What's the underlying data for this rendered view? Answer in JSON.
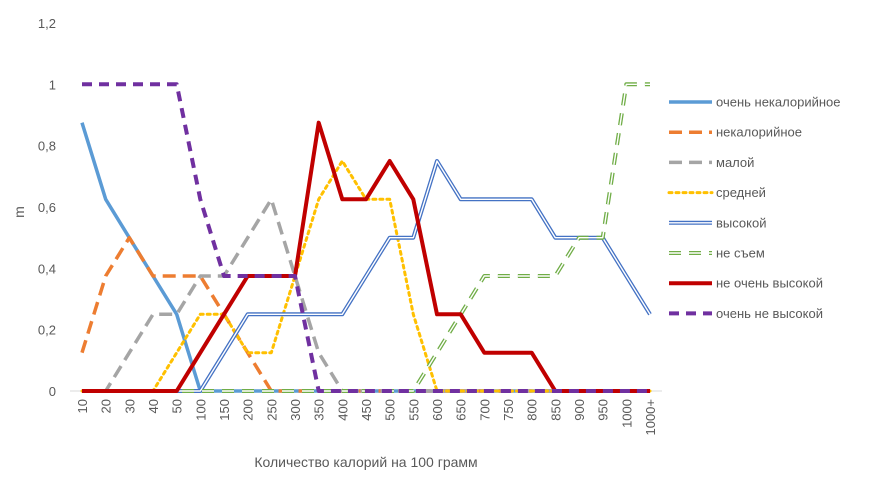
{
  "chart_data": {
    "type": "line",
    "xlabel": "Количество калорий на 100 грамм",
    "ylabel": "m",
    "ylim": [
      0,
      1.2
    ],
    "y_ticks": [
      "0",
      "0,2",
      "0,4",
      "0,6",
      "0,8",
      "1",
      "1,2"
    ],
    "grid": false,
    "legend_position": "right",
    "categories": [
      "10",
      "20",
      "30",
      "40",
      "50",
      "100",
      "150",
      "200",
      "250",
      "300",
      "350",
      "400",
      "450",
      "500",
      "550",
      "600",
      "650",
      "700",
      "750",
      "800",
      "850",
      "900",
      "950",
      "1000",
      "1000+"
    ],
    "series": [
      {
        "name": "очень некалорийное",
        "color": "#5b9bd5",
        "style": "solid",
        "values": [
          0.875,
          0.625,
          0.5,
          0.375,
          0.25,
          0,
          0,
          0,
          0,
          0,
          0,
          0,
          0,
          0,
          0,
          0,
          0,
          0,
          0,
          0,
          0,
          0,
          0,
          0,
          0
        ]
      },
      {
        "name": "некалорийное",
        "color": "#ed7d31",
        "style": "dashed",
        "values": [
          0.125,
          0.375,
          0.5,
          0.375,
          0.375,
          0.375,
          0.25,
          0.125,
          0,
          0,
          0,
          0,
          0,
          0,
          0,
          0,
          0,
          0,
          0,
          0,
          0,
          0,
          0,
          0,
          0
        ]
      },
      {
        "name": "малой",
        "color": "#a5a5a5",
        "style": "dashed",
        "values": [
          0,
          0,
          0.125,
          0.25,
          0.25,
          0.375,
          0.375,
          0.5,
          0.625,
          0.375,
          0.125,
          0,
          0,
          0,
          0,
          0,
          0,
          0,
          0,
          0,
          0,
          0,
          0,
          0,
          0
        ]
      },
      {
        "name": "средней",
        "color": "#ffc000",
        "style": "dotted",
        "values": [
          0,
          0,
          0,
          0,
          0.125,
          0.25,
          0.25,
          0.125,
          0.125,
          0.375,
          0.625,
          0.75,
          0.625,
          0.625,
          0.25,
          0,
          0,
          0,
          0,
          0,
          0,
          0,
          0,
          0,
          0
        ]
      },
      {
        "name": "высокой",
        "color": "#4472c4",
        "style": "double",
        "values": [
          0,
          0,
          0,
          0,
          0,
          0,
          0.125,
          0.25,
          0.25,
          0.25,
          0.25,
          0.25,
          0.375,
          0.5,
          0.5,
          0.75,
          0.625,
          0.625,
          0.625,
          0.625,
          0.5,
          0.5,
          0.5,
          0.375,
          0.25
        ]
      },
      {
        "name": "не съем",
        "color": "#70ad47",
        "style": "double-dashed",
        "values": [
          0,
          0,
          0,
          0,
          0,
          0,
          0,
          0,
          0,
          0,
          0,
          0,
          0,
          0,
          0,
          0.125,
          0.25,
          0.375,
          0.375,
          0.375,
          0.375,
          0.5,
          0.5,
          1,
          1
        ]
      },
      {
        "name": "не очень высокой",
        "color": "#c00000",
        "style": "solid-thick",
        "values": [
          0,
          0,
          0,
          0,
          0,
          0.125,
          0.25,
          0.375,
          0.375,
          0.375,
          0.875,
          0.625,
          0.625,
          0.75,
          0.625,
          0.25,
          0.25,
          0.125,
          0.125,
          0.125,
          0,
          0,
          0,
          0,
          0
        ]
      },
      {
        "name": "очень не высокой",
        "color": "#7030a0",
        "style": "dashed-thick",
        "values": [
          1,
          1,
          1,
          1,
          1,
          0.625,
          0.375,
          0.375,
          0.375,
          0.375,
          0,
          0,
          0,
          0,
          0,
          0,
          0,
          0,
          0,
          0,
          0,
          0,
          0,
          0,
          0
        ]
      }
    ]
  }
}
